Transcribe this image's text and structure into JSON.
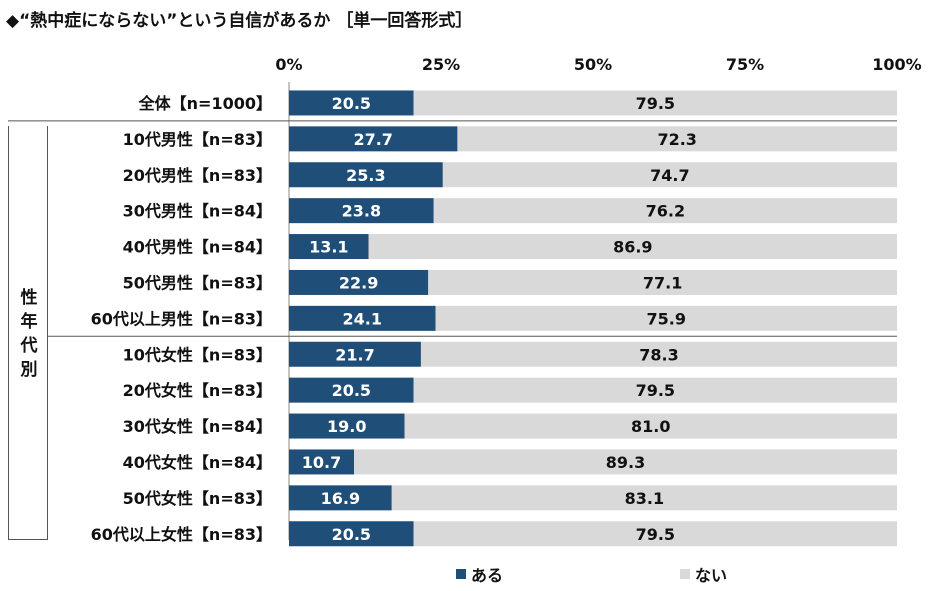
{
  "title": "◆“熱中症にならない”という自信があるか ［単一回答形式］",
  "group_label": [
    "性",
    "年",
    "代",
    "別"
  ],
  "colors": {
    "yes": "#1f4e79",
    "no": "#d9d9d9"
  },
  "chart_data": {
    "type": "bar",
    "orientation": "horizontal",
    "stacked": true,
    "xlim": [
      0,
      100
    ],
    "x_ticks": [
      "0%",
      "25%",
      "50%",
      "75%",
      "100%"
    ],
    "categories": [
      "全体【n=1000】",
      "10代男性【n=83】",
      "20代男性【n=83】",
      "30代男性【n=84】",
      "40代男性【n=84】",
      "50代男性【n=83】",
      "60代以上男性【n=83】",
      "10代女性【n=83】",
      "20代女性【n=83】",
      "30代女性【n=84】",
      "40代女性【n=84】",
      "50代女性【n=83】",
      "60代以上女性【n=83】"
    ],
    "series": [
      {
        "name": "ある",
        "values": [
          20.5,
          27.7,
          25.3,
          23.8,
          13.1,
          22.9,
          24.1,
          21.7,
          20.5,
          19.0,
          10.7,
          16.9,
          20.5
        ]
      },
      {
        "name": "ない",
        "values": [
          79.5,
          72.3,
          74.7,
          76.2,
          86.9,
          77.1,
          75.9,
          78.3,
          79.5,
          81.0,
          89.3,
          83.1,
          79.5
        ]
      }
    ],
    "legend": "bottom"
  }
}
